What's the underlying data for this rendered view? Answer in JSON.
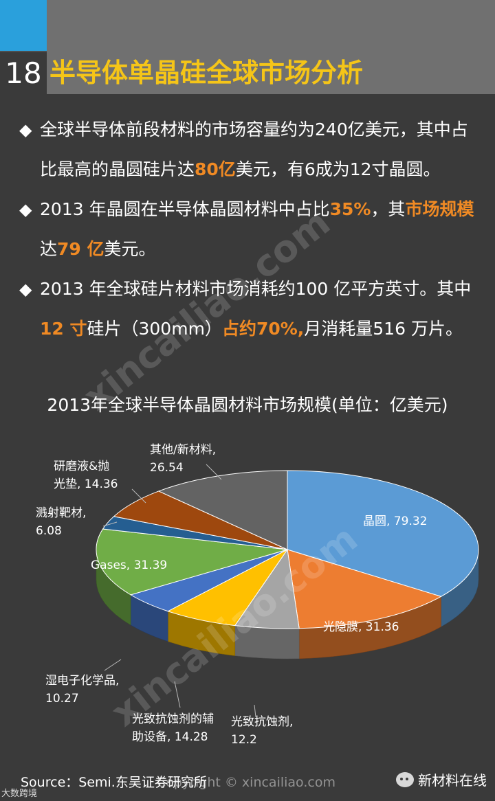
{
  "slide": {
    "number": "18",
    "title": "半导体单晶硅全球市场分析"
  },
  "bullets": [
    {
      "marker": "◆",
      "line1": [
        "全球半导体前段材料的市场容量约为240亿美元，其中占"
      ],
      "line2": [
        {
          "t": "比最高的晶圆硅片达",
          "hl": false
        },
        {
          "t": "80亿",
          "hl": true
        },
        {
          "t": "美元，有6成为12寸晶圆。",
          "hl": false
        }
      ]
    },
    {
      "marker": "◆",
      "line1": [
        {
          "t": "2013 年晶圆在半导体晶圆材料中占比",
          "hl": false
        },
        {
          "t": "35%",
          "hl": true
        },
        {
          "t": "，其",
          "hl": false
        },
        {
          "t": "市场规模",
          "hl": true
        }
      ],
      "line2": [
        {
          "t": "达",
          "hl": false
        },
        {
          "t": "79 亿",
          "hl": true
        },
        {
          "t": "美元。",
          "hl": false
        }
      ]
    },
    {
      "marker": "◆",
      "line1": [
        {
          "t": "2013 年全球硅片材料市场消耗约100 亿平方英寸。其中",
          "hl": false
        }
      ],
      "line2": [
        {
          "t": "12 寸",
          "hl": true
        },
        {
          "t": "硅片（300mm）",
          "hl": false
        },
        {
          "t": "占约70%,",
          "hl": true
        },
        {
          "t": "月消耗量516 万片。",
          "hl": false
        }
      ]
    }
  ],
  "chart_data": {
    "type": "pie",
    "title": "2013年全球半导体晶圆材料市场规模(单位：亿美元)",
    "slices": [
      {
        "name": "晶圆",
        "value": 79.32,
        "label": [
          "晶圆, 79.32"
        ],
        "color": "#5b9bd5"
      },
      {
        "name": "光隐膜",
        "value": 31.36,
        "label": [
          "光隐膜, 31.36"
        ],
        "color": "#ed7d31"
      },
      {
        "name": "光致抗蚀剂",
        "value": 12.2,
        "label": [
          "光致抗蚀剂,",
          "12.2"
        ],
        "color": "#a5a5a5"
      },
      {
        "name": "光致抗蚀剂的辅助设备",
        "value": 14.28,
        "label": [
          "光致抗蚀剂的辅",
          "助设备, 14.28"
        ],
        "color": "#ffc000"
      },
      {
        "name": "湿电子化学品",
        "value": 10.27,
        "label": [
          "湿电子化学品,",
          "10.27"
        ],
        "color": "#4472c4"
      },
      {
        "name": "Gases",
        "value": 31.39,
        "label": [
          "Gases, 31.39"
        ],
        "color": "#70ad47"
      },
      {
        "name": "溅射靶材",
        "value": 6.08,
        "label": [
          "溅射靶材,",
          "6.08"
        ],
        "color": "#255e91"
      },
      {
        "name": "研磨液&抛光垫",
        "value": 14.36,
        "label": [
          "研磨液&抛",
          "光垫, 14.36"
        ],
        "color": "#9e480e"
      },
      {
        "name": "其他/新材料",
        "value": 26.54,
        "label": [
          "其他/新材料,",
          "26.54"
        ],
        "color": "#636363"
      }
    ]
  },
  "footer": {
    "source": "Source：Semi.东吴证券研究所",
    "copyright": "Copyright © xincailiao.com",
    "brand": "新材料在线",
    "corner": "大数跨境"
  },
  "watermarks": {
    "big": "xincailiao.com",
    "cn": "新材料在线"
  }
}
